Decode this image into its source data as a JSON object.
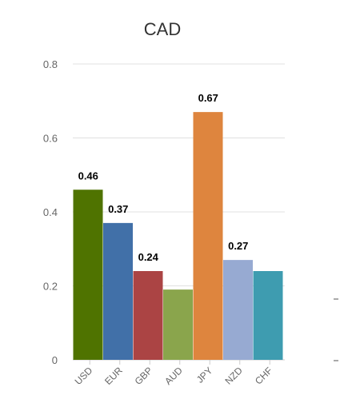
{
  "chart_data": {
    "type": "bar",
    "title": "CAD",
    "xlabel": "",
    "ylabel": "",
    "categories": [
      "USD",
      "EUR",
      "GBP",
      "AUD",
      "JPY",
      "NZD",
      "CHF"
    ],
    "values": [
      0.46,
      0.37,
      0.24,
      0.19,
      0.67,
      0.27,
      0.24
    ],
    "data_labels": [
      "0.46",
      "0.37",
      "0.24",
      "",
      "0.67",
      "0.27",
      ""
    ],
    "colors": [
      "#4f7300",
      "#4170a8",
      "#ab4444",
      "#8aa54c",
      "#de853e",
      "#97aad2",
      "#3e9cb0"
    ],
    "ylim": [
      0,
      0.8
    ],
    "yticks": [
      "0",
      "0.2",
      "0.4",
      "0.6",
      "0.8"
    ],
    "grid": true,
    "legend": "none"
  }
}
